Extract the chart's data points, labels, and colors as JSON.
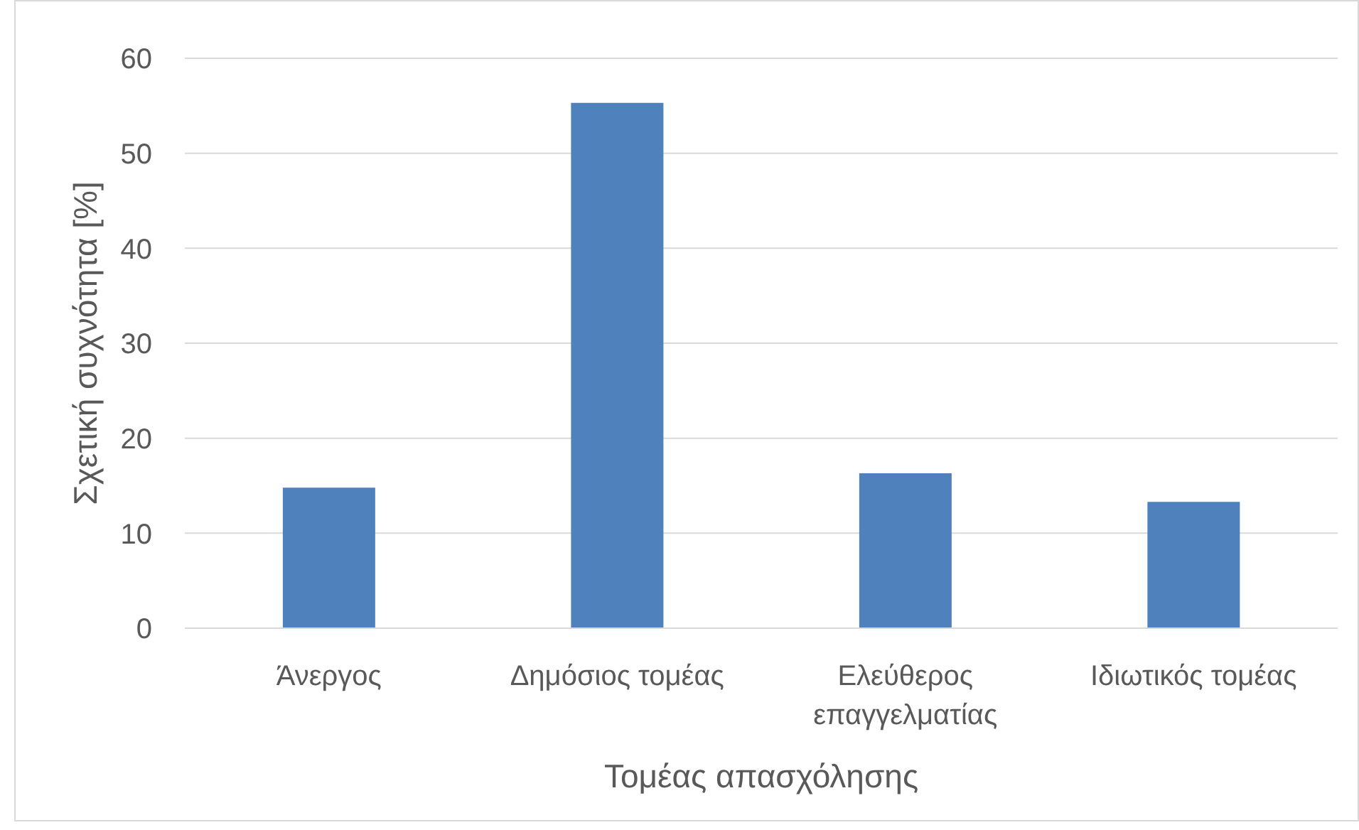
{
  "chart_data": {
    "type": "bar",
    "xlabel": "Τομέας απασχόλησης",
    "ylabel": "Σχετική συχνότητα [%]",
    "categories": [
      "Άνεργος",
      "Δημόσιος τομέας",
      "Ελεύθερος επαγγελματίας",
      "Ιδιωτικός τομέας"
    ],
    "values": [
      14.8,
      55.3,
      16.3,
      13.3
    ],
    "color": "#4f81bd",
    "ylim": [
      0,
      60
    ],
    "yticks": [
      0,
      10,
      20,
      30,
      40,
      50,
      60
    ],
    "grid": "y"
  }
}
